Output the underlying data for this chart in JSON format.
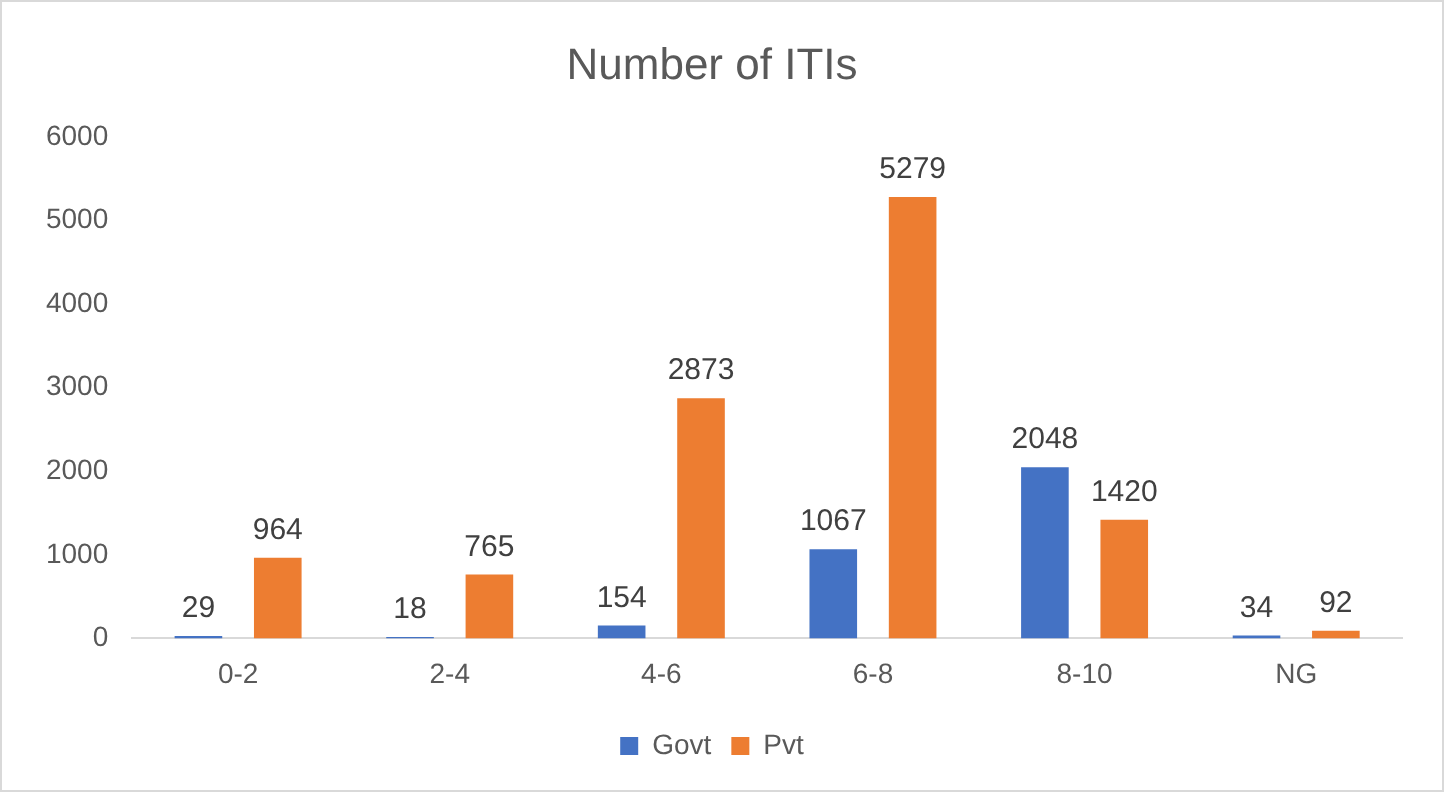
{
  "chart_data": {
    "type": "bar",
    "title": "Number of ITIs",
    "categories": [
      "0-2",
      "2-4",
      "4-6",
      "6-8",
      "8-10",
      "NG"
    ],
    "series": [
      {
        "name": "Govt",
        "color": "#4472c4",
        "values": [
          29,
          18,
          154,
          1067,
          2048,
          34
        ]
      },
      {
        "name": "Pvt",
        "color": "#ed7d31",
        "values": [
          964,
          765,
          2873,
          5279,
          1420,
          92
        ]
      }
    ],
    "ylim": [
      0,
      6000
    ],
    "yticks": [
      0,
      1000,
      2000,
      3000,
      4000,
      5000,
      6000
    ],
    "grid": false,
    "legend": "bottom",
    "data_labels": true
  }
}
